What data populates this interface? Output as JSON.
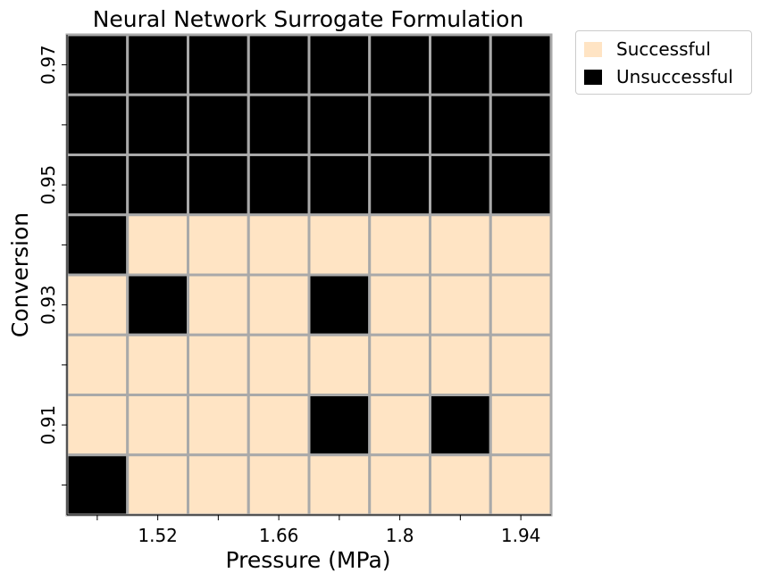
{
  "chart_data": {
    "type": "heatmap",
    "title": "Neural Network Surrogate Formulation",
    "xlabel": "Pressure (MPa)",
    "ylabel": "Conversion",
    "x_tick_labels": [
      "",
      "1.52",
      "",
      "1.66",
      "",
      "1.8",
      "",
      "1.94"
    ],
    "y_tick_labels": [
      "0.97",
      "",
      "0.95",
      "",
      "0.93",
      "",
      "0.91",
      ""
    ],
    "values": [
      [
        0,
        0,
        0,
        0,
        0,
        0,
        0,
        0
      ],
      [
        0,
        0,
        0,
        0,
        0,
        0,
        0,
        0
      ],
      [
        0,
        0,
        0,
        0,
        0,
        0,
        0,
        0
      ],
      [
        0,
        1,
        1,
        1,
        1,
        1,
        1,
        1
      ],
      [
        1,
        0,
        1,
        1,
        0,
        1,
        1,
        1
      ],
      [
        1,
        1,
        1,
        1,
        1,
        1,
        1,
        1
      ],
      [
        1,
        1,
        1,
        1,
        0,
        1,
        0,
        1
      ],
      [
        0,
        1,
        1,
        1,
        1,
        1,
        1,
        1
      ]
    ],
    "value_meaning": {
      "1": "Successful",
      "0": "Unsuccessful"
    },
    "legend": {
      "placement": "outside-top-right",
      "entries": [
        {
          "label": "Successful",
          "color": "#ffe4c4"
        },
        {
          "label": "Unsuccessful",
          "color": "#000000"
        }
      ]
    },
    "colors": {
      "success": "#ffe4c4",
      "failure": "#000000",
      "grid_line": "#a9a9a9"
    }
  }
}
